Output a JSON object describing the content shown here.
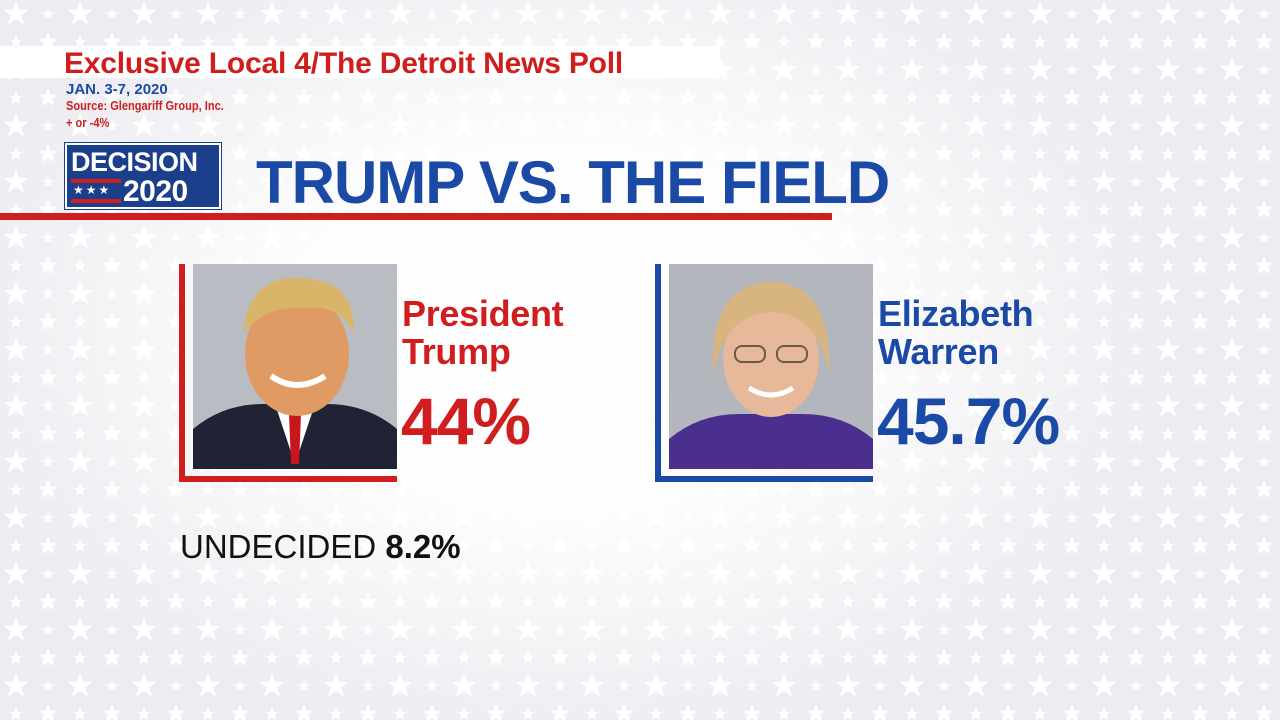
{
  "poll": {
    "title": "Exclusive Local 4/The Detroit News Poll",
    "date": "JAN. 3-7, 2020",
    "source": "Source: Glengariff Group, Inc.",
    "margin": "+ or -4%"
  },
  "logo": {
    "line1": "DECISION",
    "stars": "★★★",
    "line2": "2020"
  },
  "headline": "TRUMP VS. THE FIELD",
  "candidates": [
    {
      "name_line1": "President",
      "name_line2": "Trump",
      "percent": "44%",
      "color": "#d01e1e"
    },
    {
      "name_line1": "Elizabeth",
      "name_line2": "Warren",
      "percent": "45.7%",
      "color": "#1b4aa6"
    }
  ],
  "undecided": {
    "label": "UNDECIDED",
    "value": "8.2%"
  },
  "colors": {
    "red": "#d01e1e",
    "blue": "#1b4aa6",
    "logo_navy": "#1c3f8c"
  }
}
